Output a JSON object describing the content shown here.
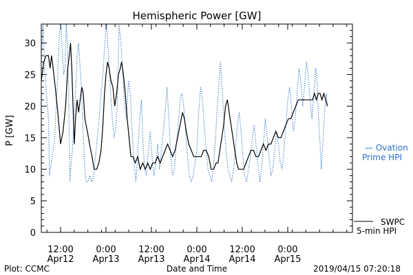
{
  "chart_data": {
    "type": "line",
    "title": "Hemispheric Power [GW]",
    "ylabel": "P [GW]",
    "xlabel": "Date and Time",
    "ylim": [
      0,
      33
    ],
    "xlim": [
      0,
      100
    ],
    "yticks": [
      0,
      5,
      10,
      15,
      20,
      25,
      30
    ],
    "xticks": [
      {
        "x": 6.2,
        "line1": "12:00",
        "line2": "Apr12"
      },
      {
        "x": 20.8,
        "line1": "0:00",
        "line2": "Apr13"
      },
      {
        "x": 35.4,
        "line1": "12:00",
        "line2": "Apr13"
      },
      {
        "x": 50.0,
        "line1": "0:00",
        "line2": "Apr14"
      },
      {
        "x": 64.6,
        "line1": "12:00",
        "line2": "Apr14"
      },
      {
        "x": 79.2,
        "line1": "0:00",
        "line2": "Apr15"
      }
    ],
    "grid": false,
    "legend_position": "right",
    "series": [
      {
        "name": "SWPC 5-min HPI",
        "legend_line1": "SWPC",
        "legend_line2": "5-min HPI",
        "color": "#000000",
        "style": "solid",
        "points": [
          [
            0,
            24
          ],
          [
            0.8,
            27
          ],
          [
            1.5,
            28
          ],
          [
            2.3,
            28
          ],
          [
            2.8,
            26
          ],
          [
            3.3,
            28
          ],
          [
            3.8,
            26
          ],
          [
            4.5,
            23
          ],
          [
            5.3,
            19
          ],
          [
            6.2,
            14
          ],
          [
            7.0,
            16
          ],
          [
            7.8,
            20
          ],
          [
            8.5,
            26
          ],
          [
            9.0,
            28
          ],
          [
            9.4,
            30
          ],
          [
            9.8,
            26
          ],
          [
            10.2,
            20
          ],
          [
            10.6,
            14
          ],
          [
            11.0,
            18
          ],
          [
            11.5,
            21
          ],
          [
            12.0,
            19
          ],
          [
            12.5,
            21
          ],
          [
            13.0,
            23
          ],
          [
            13.5,
            22
          ],
          [
            14.0,
            18
          ],
          [
            14.8,
            16
          ],
          [
            15.5,
            14
          ],
          [
            16.3,
            12
          ],
          [
            17.0,
            10
          ],
          [
            17.8,
            10
          ],
          [
            18.5,
            11
          ],
          [
            19.2,
            13
          ],
          [
            19.8,
            17
          ],
          [
            20.3,
            22
          ],
          [
            20.8,
            25
          ],
          [
            21.3,
            27
          ],
          [
            21.8,
            26
          ],
          [
            22.4,
            24
          ],
          [
            23.0,
            23
          ],
          [
            23.6,
            20
          ],
          [
            24.2,
            22
          ],
          [
            24.8,
            25
          ],
          [
            25.4,
            26
          ],
          [
            25.8,
            27
          ],
          [
            26.4,
            25
          ],
          [
            27.0,
            22
          ],
          [
            27.6,
            18
          ],
          [
            28.2,
            15
          ],
          [
            28.8,
            12
          ],
          [
            29.5,
            12
          ],
          [
            30.2,
            11
          ],
          [
            31.0,
            12
          ],
          [
            31.8,
            10
          ],
          [
            32.6,
            11
          ],
          [
            33.4,
            10
          ],
          [
            34.2,
            11
          ],
          [
            35.0,
            10
          ],
          [
            35.8,
            11
          ],
          [
            36.6,
            11
          ],
          [
            37.4,
            12
          ],
          [
            38.2,
            11
          ],
          [
            39.0,
            12
          ],
          [
            39.8,
            13
          ],
          [
            40.6,
            14
          ],
          [
            41.4,
            13
          ],
          [
            42.2,
            12
          ],
          [
            43.0,
            13
          ],
          [
            43.8,
            15
          ],
          [
            44.6,
            17
          ],
          [
            45.4,
            19
          ],
          [
            46.0,
            18
          ],
          [
            46.6,
            16
          ],
          [
            47.4,
            14
          ],
          [
            48.2,
            13
          ],
          [
            49.0,
            12
          ],
          [
            49.8,
            12
          ],
          [
            50.6,
            12
          ],
          [
            51.4,
            12
          ],
          [
            52.2,
            13
          ],
          [
            53.0,
            13
          ],
          [
            53.8,
            12
          ],
          [
            54.6,
            10
          ],
          [
            55.4,
            10
          ],
          [
            56.2,
            11
          ],
          [
            56.8,
            11
          ],
          [
            57.4,
            13
          ],
          [
            58.0,
            15
          ],
          [
            58.6,
            17
          ],
          [
            59.2,
            20
          ],
          [
            59.8,
            21
          ],
          [
            60.4,
            19
          ],
          [
            61.0,
            17
          ],
          [
            61.6,
            15
          ],
          [
            62.2,
            13
          ],
          [
            62.8,
            11
          ],
          [
            63.4,
            10
          ],
          [
            64.2,
            10
          ],
          [
            65.0,
            10
          ],
          [
            65.8,
            11
          ],
          [
            66.6,
            12
          ],
          [
            67.4,
            13
          ],
          [
            68.2,
            13
          ],
          [
            69.0,
            12
          ],
          [
            69.8,
            12
          ],
          [
            70.6,
            13
          ],
          [
            71.4,
            14
          ],
          [
            72.2,
            13
          ],
          [
            73.0,
            14
          ],
          [
            73.8,
            14
          ],
          [
            74.6,
            15
          ],
          [
            75.4,
            16
          ],
          [
            76.2,
            15
          ],
          [
            77.0,
            15
          ],
          [
            77.8,
            16
          ],
          [
            78.6,
            17
          ],
          [
            79.4,
            18
          ],
          [
            80.2,
            18
          ],
          [
            81.0,
            19
          ],
          [
            81.8,
            20
          ],
          [
            82.6,
            21
          ],
          [
            83.4,
            21
          ],
          [
            84.2,
            21
          ],
          [
            85.0,
            21
          ],
          [
            85.8,
            21
          ],
          [
            86.6,
            21
          ],
          [
            87.2,
            21
          ],
          [
            87.8,
            22
          ],
          [
            88.4,
            21
          ],
          [
            89.0,
            22
          ],
          [
            89.6,
            22
          ],
          [
            90.2,
            21
          ],
          [
            90.8,
            22
          ],
          [
            91.4,
            21
          ],
          [
            92.0,
            20
          ]
        ]
      },
      {
        "name": "Ovation Prime HPI",
        "legend_line1": "— Ovation",
        "legend_line2": "Prime HPI",
        "color": "#2a6fc9",
        "style": "dotted",
        "points": [
          [
            0,
            28
          ],
          [
            0.6,
            33
          ],
          [
            1.2,
            25
          ],
          [
            1.8,
            21
          ],
          [
            2.3,
            18
          ],
          [
            2.6,
            9
          ],
          [
            3.2,
            11
          ],
          [
            3.8,
            13
          ],
          [
            4.3,
            15
          ],
          [
            4.8,
            20
          ],
          [
            5.3,
            25
          ],
          [
            5.8,
            31
          ],
          [
            6.3,
            33
          ],
          [
            6.8,
            28
          ],
          [
            7.2,
            25
          ],
          [
            7.6,
            26
          ],
          [
            8.0,
            33
          ],
          [
            8.4,
            30
          ],
          [
            8.8,
            22
          ],
          [
            9.2,
            8
          ],
          [
            9.6,
            11
          ],
          [
            10.0,
            13
          ],
          [
            10.5,
            18
          ],
          [
            11.0,
            22
          ],
          [
            11.5,
            28
          ],
          [
            12.0,
            30
          ],
          [
            12.5,
            26
          ],
          [
            13.0,
            22
          ],
          [
            13.5,
            15
          ],
          [
            14.0,
            10
          ],
          [
            14.4,
            8
          ],
          [
            15.0,
            8
          ],
          [
            15.6,
            9
          ],
          [
            16.2,
            8
          ],
          [
            16.8,
            9
          ],
          [
            17.4,
            12
          ],
          [
            18.0,
            15
          ],
          [
            18.6,
            18
          ],
          [
            19.2,
            22
          ],
          [
            19.8,
            25
          ],
          [
            20.4,
            30
          ],
          [
            21.0,
            33
          ],
          [
            21.6,
            28
          ],
          [
            22.2,
            23
          ],
          [
            22.8,
            18
          ],
          [
            23.4,
            15
          ],
          [
            23.8,
            16
          ],
          [
            24.4,
            20
          ],
          [
            25.0,
            33
          ],
          [
            25.6,
            30
          ],
          [
            26.2,
            25
          ],
          [
            26.8,
            20
          ],
          [
            27.4,
            18
          ],
          [
            28.0,
            24
          ],
          [
            28.6,
            22
          ],
          [
            29.2,
            16
          ],
          [
            29.8,
            11
          ],
          [
            30.4,
            8
          ],
          [
            31.0,
            12
          ],
          [
            31.6,
            18
          ],
          [
            32.2,
            21
          ],
          [
            32.6,
            15
          ],
          [
            33.2,
            10
          ],
          [
            33.8,
            9
          ],
          [
            34.4,
            13
          ],
          [
            35.0,
            16
          ],
          [
            35.6,
            12
          ],
          [
            36.2,
            9
          ],
          [
            36.8,
            11
          ],
          [
            37.4,
            14
          ],
          [
            38.0,
            10
          ],
          [
            38.6,
            13
          ],
          [
            39.2,
            16
          ],
          [
            39.8,
            19
          ],
          [
            40.4,
            23
          ],
          [
            41.0,
            18
          ],
          [
            41.6,
            12
          ],
          [
            42.2,
            9
          ],
          [
            42.8,
            10
          ],
          [
            43.4,
            14
          ],
          [
            44.0,
            17
          ],
          [
            44.6,
            21
          ],
          [
            45.2,
            22
          ],
          [
            45.8,
            20
          ],
          [
            46.4,
            16
          ],
          [
            47.0,
            12
          ],
          [
            47.6,
            9
          ],
          [
            48.2,
            8
          ],
          [
            48.8,
            9
          ],
          [
            49.4,
            11
          ],
          [
            50.0,
            13
          ],
          [
            50.6,
            19
          ],
          [
            51.2,
            23
          ],
          [
            51.8,
            21
          ],
          [
            52.4,
            17
          ],
          [
            53.0,
            13
          ],
          [
            53.6,
            10
          ],
          [
            54.2,
            9
          ],
          [
            54.8,
            8
          ],
          [
            55.4,
            11
          ],
          [
            56.0,
            15
          ],
          [
            56.6,
            20
          ],
          [
            57.2,
            24
          ],
          [
            57.6,
            27
          ],
          [
            58.2,
            22
          ],
          [
            58.8,
            17
          ],
          [
            59.4,
            13
          ],
          [
            60.0,
            10
          ],
          [
            60.6,
            9
          ],
          [
            61.2,
            8
          ],
          [
            61.8,
            10
          ],
          [
            62.4,
            13
          ],
          [
            63.0,
            17
          ],
          [
            63.6,
            19
          ],
          [
            64.2,
            16
          ],
          [
            64.8,
            12
          ],
          [
            65.4,
            9
          ],
          [
            66.0,
            8
          ],
          [
            66.6,
            10
          ],
          [
            67.2,
            12
          ],
          [
            67.8,
            15
          ],
          [
            68.4,
            17
          ],
          [
            69.0,
            14
          ],
          [
            69.6,
            11
          ],
          [
            70.2,
            8
          ],
          [
            70.8,
            10
          ],
          [
            71.4,
            14
          ],
          [
            72.0,
            18
          ],
          [
            72.6,
            15
          ],
          [
            73.2,
            12
          ],
          [
            73.8,
            9
          ],
          [
            74.4,
            10
          ],
          [
            75.0,
            13
          ],
          [
            75.6,
            16
          ],
          [
            76.2,
            14
          ],
          [
            76.8,
            11
          ],
          [
            77.4,
            10
          ],
          [
            78.0,
            13
          ],
          [
            78.6,
            17
          ],
          [
            79.2,
            21
          ],
          [
            79.8,
            23
          ],
          [
            80.4,
            20
          ],
          [
            81.0,
            16
          ],
          [
            81.6,
            18
          ],
          [
            82.2,
            22
          ],
          [
            82.8,
            26
          ],
          [
            83.4,
            24
          ],
          [
            84.0,
            20
          ],
          [
            84.6,
            23
          ],
          [
            85.2,
            27
          ],
          [
            85.8,
            25
          ],
          [
            86.4,
            21
          ],
          [
            87.0,
            18
          ],
          [
            87.6,
            22
          ],
          [
            88.2,
            26
          ],
          [
            88.6,
            24
          ],
          [
            89.0,
            19
          ],
          [
            89.6,
            14
          ],
          [
            90.0,
            10
          ],
          [
            90.4,
            13
          ],
          [
            90.8,
            17
          ],
          [
            91.2,
            20
          ],
          [
            91.6,
            22
          ],
          [
            92.0,
            20
          ]
        ]
      }
    ]
  },
  "footer": {
    "left": "Plot: CCMC",
    "right": "2019/04/15 07:20:18"
  }
}
